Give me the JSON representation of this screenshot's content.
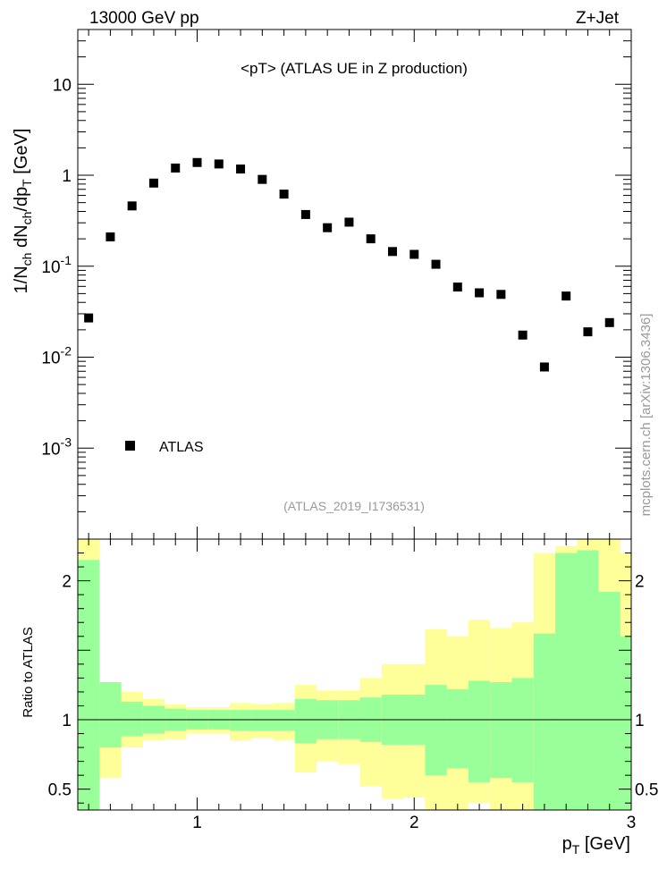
{
  "header": {
    "left": "13000 GeV pp",
    "right": "Z+Jet"
  },
  "side_label": "mcplots.cern.ch [arXiv:1306.3436]",
  "chart_data": {
    "type": "scatter",
    "title": "<pT> (ATLAS UE in Z production)",
    "analysis_label": "(ATLAS_2019_I1736531)",
    "ylabel": "1/N_ch dN_ch/dp_T [GeV]",
    "xlabel": "p_T [GeV]",
    "yscale": "log",
    "xlim": [
      0.45,
      3.0
    ],
    "ylim": [
      0.0001,
      40
    ],
    "y_ticks": [
      {
        "value": 10,
        "label": "10"
      },
      {
        "value": 1,
        "label": "1"
      },
      {
        "value": 0.1,
        "label": "10^-1"
      },
      {
        "value": 0.01,
        "label": "10^-2"
      },
      {
        "value": 0.001,
        "label": "10^-3"
      }
    ],
    "legend": {
      "placement": "bottom-left",
      "entry": "ATLAS"
    },
    "series": [
      {
        "name": "ATLAS",
        "color": "#000000",
        "x": [
          0.5,
          0.6,
          0.7,
          0.8,
          0.9,
          1.0,
          1.1,
          1.2,
          1.3,
          1.4,
          1.5,
          1.6,
          1.7,
          1.8,
          1.9,
          2.0,
          2.1,
          2.2,
          2.3,
          2.4,
          2.5,
          2.6,
          2.7,
          2.8,
          2.9
        ],
        "y": [
          0.027,
          0.21,
          0.46,
          0.82,
          1.2,
          1.38,
          1.33,
          1.17,
          0.9,
          0.62,
          0.37,
          0.265,
          0.305,
          0.2,
          0.145,
          0.135,
          0.105,
          0.059,
          0.051,
          0.049,
          0.0175,
          0.0078,
          0.047,
          0.019,
          0.024
        ]
      }
    ],
    "ratio_panel": {
      "ylabel": "Ratio to ATLAS",
      "ylim": [
        0.35,
        2.3
      ],
      "x_ticks": [
        {
          "value": 1,
          "label": "1"
        },
        {
          "value": 2,
          "label": "2"
        },
        {
          "value": 3,
          "label": "3"
        }
      ],
      "y_ticks": [
        {
          "value": 0.5,
          "label": "0.5"
        },
        {
          "value": 1,
          "label": "1"
        },
        {
          "value": 2,
          "label": "2"
        }
      ],
      "reference_line": 1,
      "band_colors": {
        "inner": "#99ff99",
        "outer": "#ffff99"
      },
      "bins": [
        {
          "lo": 0.45,
          "hi": 0.55,
          "inner": [
            0.35,
            2.15
          ],
          "outer": [
            0.35,
            2.3
          ]
        },
        {
          "lo": 0.55,
          "hi": 0.65,
          "inner": [
            0.8,
            1.27
          ],
          "outer": [
            0.58,
            1.27
          ]
        },
        {
          "lo": 0.65,
          "hi": 0.75,
          "inner": [
            0.88,
            1.13
          ],
          "outer": [
            0.8,
            1.2
          ]
        },
        {
          "lo": 0.75,
          "hi": 0.85,
          "inner": [
            0.9,
            1.1
          ],
          "outer": [
            0.85,
            1.15
          ]
        },
        {
          "lo": 0.85,
          "hi": 0.95,
          "inner": [
            0.92,
            1.08
          ],
          "outer": [
            0.86,
            1.11
          ]
        },
        {
          "lo": 0.95,
          "hi": 1.05,
          "inner": [
            0.93,
            1.07
          ],
          "outer": [
            0.9,
            1.09
          ]
        },
        {
          "lo": 1.05,
          "hi": 1.15,
          "inner": [
            0.93,
            1.07
          ],
          "outer": [
            0.9,
            1.09
          ]
        },
        {
          "lo": 1.15,
          "hi": 1.25,
          "inner": [
            0.92,
            1.07
          ],
          "outer": [
            0.85,
            1.12
          ]
        },
        {
          "lo": 1.25,
          "hi": 1.35,
          "inner": [
            0.92,
            1.07
          ],
          "outer": [
            0.87,
            1.11
          ]
        },
        {
          "lo": 1.35,
          "hi": 1.45,
          "inner": [
            0.92,
            1.07
          ],
          "outer": [
            0.85,
            1.12
          ]
        },
        {
          "lo": 1.45,
          "hi": 1.55,
          "inner": [
            0.83,
            1.15
          ],
          "outer": [
            0.62,
            1.25
          ]
        },
        {
          "lo": 1.55,
          "hi": 1.65,
          "inner": [
            0.86,
            1.14
          ],
          "outer": [
            0.7,
            1.21
          ]
        },
        {
          "lo": 1.65,
          "hi": 1.75,
          "inner": [
            0.86,
            1.14
          ],
          "outer": [
            0.68,
            1.21
          ]
        },
        {
          "lo": 1.75,
          "hi": 1.85,
          "inner": [
            0.84,
            1.16
          ],
          "outer": [
            0.52,
            1.3
          ]
        },
        {
          "lo": 1.85,
          "hi": 1.95,
          "inner": [
            0.82,
            1.18
          ],
          "outer": [
            0.43,
            1.4
          ]
        },
        {
          "lo": 1.95,
          "hi": 2.05,
          "inner": [
            0.82,
            1.18
          ],
          "outer": [
            0.44,
            1.4
          ]
        },
        {
          "lo": 2.05,
          "hi": 2.15,
          "inner": [
            0.6,
            1.25
          ],
          "outer": [
            0.35,
            1.65
          ]
        },
        {
          "lo": 2.15,
          "hi": 2.25,
          "inner": [
            0.65,
            1.22
          ],
          "outer": [
            0.35,
            1.6
          ]
        },
        {
          "lo": 2.25,
          "hi": 2.35,
          "inner": [
            0.55,
            1.28
          ],
          "outer": [
            0.4,
            1.72
          ]
        },
        {
          "lo": 2.35,
          "hi": 2.45,
          "inner": [
            0.58,
            1.27
          ],
          "outer": [
            0.35,
            1.66
          ]
        },
        {
          "lo": 2.45,
          "hi": 2.55,
          "inner": [
            0.55,
            1.3
          ],
          "outer": [
            0.35,
            1.7
          ]
        },
        {
          "lo": 2.55,
          "hi": 2.65,
          "inner": [
            0.35,
            1.62
          ],
          "outer": [
            0.35,
            2.2
          ]
        },
        {
          "lo": 2.65,
          "hi": 2.75,
          "inner": [
            0.35,
            2.2
          ],
          "outer": [
            0.35,
            2.25
          ]
        },
        {
          "lo": 2.75,
          "hi": 2.85,
          "inner": [
            0.35,
            2.22
          ],
          "outer": [
            0.35,
            2.3
          ]
        },
        {
          "lo": 2.85,
          "hi": 2.95,
          "inner": [
            0.35,
            1.92
          ],
          "outer": [
            0.35,
            2.3
          ]
        },
        {
          "lo": 2.95,
          "hi": 3.05,
          "inner": [
            0.35,
            1.6
          ],
          "outer": [
            0.45,
            2.2
          ]
        }
      ]
    }
  }
}
